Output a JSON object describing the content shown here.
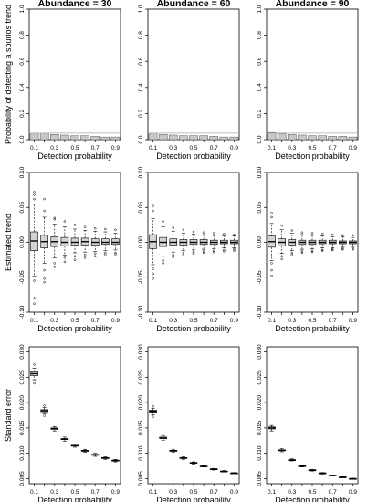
{
  "chart_data": [
    {
      "type": "bar",
      "title": "Abundance = 30",
      "xlabel": "Detection probability",
      "ylabel": "Probability of detecting a spurios trend",
      "categories": [
        "0.1",
        "0.2",
        "0.3",
        "0.4",
        "0.5",
        "0.6",
        "0.7",
        "0.8",
        "0.9"
      ],
      "x_tick_labels": [
        "0.1",
        "0.3",
        "0.5",
        "0.7",
        "0.9"
      ],
      "y_tick_labels": [
        "0.0",
        "0.2",
        "0.4",
        "0.6",
        "0.8",
        "1.0"
      ],
      "values": [
        0.05,
        0.05,
        0.04,
        0.035,
        0.03,
        0.03,
        0.025,
        0.02,
        0.02
      ],
      "reference_line": 0.05,
      "ylim": [
        0,
        1
      ],
      "colors": {
        "bar_fill": "#c8c8c8",
        "bar_edge": "#555555"
      }
    },
    {
      "type": "bar",
      "title": "Abundance = 60",
      "xlabel": "Detection probability",
      "ylabel": "",
      "categories": [
        "0.1",
        "0.2",
        "0.3",
        "0.4",
        "0.5",
        "0.6",
        "0.7",
        "0.8",
        "0.9"
      ],
      "x_tick_labels": [
        "0.1",
        "0.3",
        "0.5",
        "0.7",
        "0.9"
      ],
      "y_tick_labels": [
        "0.0",
        "0.2",
        "0.4",
        "0.6",
        "0.8",
        "1.0"
      ],
      "values": [
        0.05,
        0.04,
        0.035,
        0.03,
        0.03,
        0.03,
        0.025,
        0.02,
        0.02
      ],
      "reference_line": 0.05,
      "ylim": [
        0,
        1
      ],
      "colors": {
        "bar_fill": "#c8c8c8",
        "bar_edge": "#555555"
      }
    },
    {
      "type": "bar",
      "title": "Abundance = 90",
      "xlabel": "Detection probability",
      "ylabel": "",
      "categories": [
        "0.1",
        "0.2",
        "0.3",
        "0.4",
        "0.5",
        "0.6",
        "0.7",
        "0.8",
        "0.9"
      ],
      "x_tick_labels": [
        "0.1",
        "0.3",
        "0.5",
        "0.7",
        "0.9"
      ],
      "y_tick_labels": [
        "0.0",
        "0.2",
        "0.4",
        "0.6",
        "0.8",
        "1.0"
      ],
      "values": [
        0.055,
        0.045,
        0.04,
        0.035,
        0.03,
        0.03,
        0.025,
        0.025,
        0.02
      ],
      "reference_line": 0.05,
      "ylim": [
        0,
        1
      ],
      "colors": {
        "bar_fill": "#c8c8c8",
        "bar_edge": "#555555"
      }
    },
    {
      "type": "boxplot",
      "xlabel": "Detection probability",
      "ylabel": "Estimated trend",
      "categories": [
        "0.1",
        "0.2",
        "0.3",
        "0.4",
        "0.5",
        "0.6",
        "0.7",
        "0.8",
        "0.9"
      ],
      "x_tick_labels": [
        "0.1",
        "0.3",
        "0.5",
        "0.7",
        "0.9"
      ],
      "y_tick_labels": [
        "-0.10",
        "-0.05",
        "0.00",
        "0.05",
        "0.10"
      ],
      "ylim": [
        -0.1,
        0.1
      ],
      "boxes": [
        {
          "q1": -0.012,
          "median": 0.002,
          "q3": 0.015,
          "whisker_low": -0.048,
          "whisker_high": 0.055,
          "outliers": [
            0.072,
            0.068,
            0.062,
            -0.055,
            -0.08,
            -0.088
          ]
        },
        {
          "q1": -0.008,
          "median": 0.001,
          "q3": 0.01,
          "whisker_low": -0.03,
          "whisker_high": 0.036,
          "outliers": [
            0.062,
            0.045,
            -0.04,
            -0.052,
            -0.057
          ]
        },
        {
          "q1": -0.006,
          "median": 0.001,
          "q3": 0.008,
          "whisker_low": -0.022,
          "whisker_high": 0.026,
          "outliers": [
            0.035,
            0.033,
            -0.03,
            -0.035
          ]
        },
        {
          "q1": -0.005,
          "median": 0.0,
          "q3": 0.007,
          "whisker_low": -0.018,
          "whisker_high": 0.022,
          "outliers": [
            0.03,
            -0.022,
            -0.028
          ]
        },
        {
          "q1": -0.004,
          "median": 0.0,
          "q3": 0.006,
          "whisker_low": -0.015,
          "whisker_high": 0.019,
          "outliers": [
            0.025,
            -0.02,
            -0.025
          ]
        },
        {
          "q1": -0.004,
          "median": 0.001,
          "q3": 0.006,
          "whisker_low": -0.014,
          "whisker_high": 0.017,
          "outliers": [
            0.022,
            -0.018,
            -0.022
          ]
        },
        {
          "q1": -0.004,
          "median": 0.0,
          "q3": 0.005,
          "whisker_low": -0.013,
          "whisker_high": 0.016,
          "outliers": [
            0.02,
            -0.016,
            -0.02
          ]
        },
        {
          "q1": -0.003,
          "median": 0.0,
          "q3": 0.005,
          "whisker_low": -0.012,
          "whisker_high": 0.015,
          "outliers": [
            0.019,
            -0.015,
            -0.018
          ]
        },
        {
          "q1": -0.003,
          "median": 0.0,
          "q3": 0.005,
          "whisker_low": -0.011,
          "whisker_high": 0.013,
          "outliers": [
            0.018,
            -0.015,
            -0.017
          ]
        }
      ],
      "colors": {
        "box_fill": "#d3d3d3",
        "box_edge": "#000000"
      }
    },
    {
      "type": "boxplot",
      "xlabel": "Detection probability",
      "ylabel": "",
      "categories": [
        "0.1",
        "0.2",
        "0.3",
        "0.4",
        "0.5",
        "0.6",
        "0.7",
        "0.8",
        "0.9"
      ],
      "x_tick_labels": [
        "0.1",
        "0.3",
        "0.5",
        "0.7",
        "0.9"
      ],
      "y_tick_labels": [
        "-0.10",
        "-0.05",
        "0.00",
        "0.05",
        "0.10"
      ],
      "ylim": [
        -0.1,
        0.1
      ],
      "boxes": [
        {
          "q1": -0.009,
          "median": 0.001,
          "q3": 0.011,
          "whisker_low": -0.032,
          "whisker_high": 0.034,
          "outliers": [
            0.052,
            0.045,
            -0.038,
            -0.045,
            -0.052
          ]
        },
        {
          "q1": -0.006,
          "median": 0.0,
          "q3": 0.007,
          "whisker_low": -0.02,
          "whisker_high": 0.022,
          "outliers": [
            0.03,
            -0.026,
            -0.03
          ]
        },
        {
          "q1": -0.004,
          "median": 0.0,
          "q3": 0.005,
          "whisker_low": -0.014,
          "whisker_high": 0.016,
          "outliers": [
            0.021,
            -0.018,
            -0.021
          ]
        },
        {
          "q1": -0.004,
          "median": 0.0,
          "q3": 0.004,
          "whisker_low": -0.012,
          "whisker_high": 0.013,
          "outliers": [
            0.018,
            -0.015,
            -0.018
          ]
        },
        {
          "q1": -0.003,
          "median": 0.0,
          "q3": 0.004,
          "whisker_low": -0.011,
          "whisker_high": 0.012,
          "outliers": [
            0.015,
            -0.014,
            -0.016
          ]
        },
        {
          "q1": -0.003,
          "median": 0.0,
          "q3": 0.004,
          "whisker_low": -0.01,
          "whisker_high": 0.011,
          "outliers": [
            0.014,
            -0.013,
            -0.015
          ]
        },
        {
          "q1": -0.003,
          "median": 0.0,
          "q3": 0.003,
          "whisker_low": -0.009,
          "whisker_high": 0.01,
          "outliers": [
            0.013,
            -0.012,
            -0.014
          ]
        },
        {
          "q1": -0.002,
          "median": 0.0,
          "q3": 0.003,
          "whisker_low": -0.008,
          "whisker_high": 0.009,
          "outliers": [
            0.012,
            -0.011,
            -0.013
          ]
        },
        {
          "q1": -0.002,
          "median": 0.0,
          "q3": 0.003,
          "whisker_low": -0.008,
          "whisker_high": 0.009,
          "outliers": [
            0.011,
            -0.01,
            -0.012
          ]
        }
      ],
      "colors": {
        "box_fill": "#d3d3d3",
        "box_edge": "#000000"
      }
    },
    {
      "type": "boxplot",
      "xlabel": "Detection probability",
      "ylabel": "",
      "categories": [
        "0.1",
        "0.2",
        "0.3",
        "0.4",
        "0.5",
        "0.6",
        "0.7",
        "0.8",
        "0.9"
      ],
      "x_tick_labels": [
        "0.1",
        "0.3",
        "0.5",
        "0.7",
        "0.9"
      ],
      "y_tick_labels": [
        "-0.10",
        "-0.05",
        "0.00",
        "0.05",
        "0.10"
      ],
      "ylim": [
        -0.1,
        0.1
      ],
      "boxes": [
        {
          "q1": -0.007,
          "median": 0.001,
          "q3": 0.009,
          "whisker_low": -0.026,
          "whisker_high": 0.027,
          "outliers": [
            0.042,
            0.036,
            -0.03,
            -0.04,
            -0.048
          ]
        },
        {
          "q1": -0.005,
          "median": 0.0,
          "q3": 0.005,
          "whisker_low": -0.016,
          "whisker_high": 0.018,
          "outliers": [
            0.024,
            -0.02,
            -0.024
          ]
        },
        {
          "q1": -0.004,
          "median": 0.0,
          "q3": 0.004,
          "whisker_low": -0.012,
          "whisker_high": 0.013,
          "outliers": [
            0.017,
            -0.015,
            -0.018
          ]
        },
        {
          "q1": -0.003,
          "median": 0.0,
          "q3": 0.003,
          "whisker_low": -0.01,
          "whisker_high": 0.011,
          "outliers": [
            0.014,
            -0.013,
            -0.015
          ]
        },
        {
          "q1": -0.003,
          "median": 0.0,
          "q3": 0.003,
          "whisker_low": -0.009,
          "whisker_high": 0.01,
          "outliers": [
            0.013,
            -0.012,
            -0.014
          ]
        },
        {
          "q1": -0.002,
          "median": 0.0,
          "q3": 0.003,
          "whisker_low": -0.008,
          "whisker_high": 0.009,
          "outliers": [
            0.012,
            -0.011,
            -0.012
          ]
        },
        {
          "q1": -0.002,
          "median": 0.0,
          "q3": 0.003,
          "whisker_low": -0.008,
          "whisker_high": 0.008,
          "outliers": [
            0.011,
            -0.01,
            -0.011
          ]
        },
        {
          "q1": -0.002,
          "median": 0.0,
          "q3": 0.002,
          "whisker_low": -0.007,
          "whisker_high": 0.008,
          "outliers": [
            0.01,
            -0.009,
            -0.01
          ]
        },
        {
          "q1": -0.002,
          "median": 0.0,
          "q3": 0.002,
          "whisker_low": -0.007,
          "whisker_high": 0.007,
          "outliers": [
            0.01,
            -0.009,
            -0.01
          ]
        }
      ],
      "colors": {
        "box_fill": "#d3d3d3",
        "box_edge": "#000000"
      }
    },
    {
      "type": "boxplot",
      "xlabel": "Detection probability",
      "ylabel": "Standard error",
      "categories": [
        "0.1",
        "0.2",
        "0.3",
        "0.4",
        "0.5",
        "0.6",
        "0.7",
        "0.8",
        "0.9"
      ],
      "x_tick_labels": [
        "0.1",
        "0.3",
        "0.5",
        "0.7",
        "0.9"
      ],
      "y_tick_labels": [
        "0.005",
        "0.010",
        "0.015",
        "0.020",
        "0.025",
        "0.030"
      ],
      "ylim": [
        0.004,
        0.031
      ],
      "boxes": [
        {
          "q1": 0.0253,
          "median": 0.0257,
          "q3": 0.0261,
          "whisker_low": 0.0245,
          "whisker_high": 0.0268,
          "outliers": [
            0.0275,
            0.0238
          ]
        },
        {
          "q1": 0.0182,
          "median": 0.0184,
          "q3": 0.0186,
          "whisker_low": 0.0178,
          "whisker_high": 0.019,
          "outliers": [
            0.0194,
            0.0174
          ]
        },
        {
          "q1": 0.0147,
          "median": 0.0149,
          "q3": 0.015,
          "whisker_low": 0.0144,
          "whisker_high": 0.0153,
          "outliers": []
        },
        {
          "q1": 0.0127,
          "median": 0.0128,
          "q3": 0.0129,
          "whisker_low": 0.0124,
          "whisker_high": 0.0132,
          "outliers": []
        },
        {
          "q1": 0.0114,
          "median": 0.0115,
          "q3": 0.0116,
          "whisker_low": 0.0112,
          "whisker_high": 0.0118,
          "outliers": []
        },
        {
          "q1": 0.0104,
          "median": 0.0105,
          "q3": 0.0106,
          "whisker_low": 0.0102,
          "whisker_high": 0.0108,
          "outliers": []
        },
        {
          "q1": 0.0096,
          "median": 0.0097,
          "q3": 0.0098,
          "whisker_low": 0.0094,
          "whisker_high": 0.01,
          "outliers": []
        },
        {
          "q1": 0.009,
          "median": 0.0091,
          "q3": 0.0091,
          "whisker_low": 0.0088,
          "whisker_high": 0.0093,
          "outliers": []
        },
        {
          "q1": 0.0085,
          "median": 0.0086,
          "q3": 0.0086,
          "whisker_low": 0.0083,
          "whisker_high": 0.0088,
          "outliers": []
        }
      ],
      "colors": {
        "box_fill": "#d3d3d3",
        "box_edge": "#000000"
      }
    },
    {
      "type": "boxplot",
      "xlabel": "Detection probability",
      "ylabel": "",
      "categories": [
        "0.1",
        "0.2",
        "0.3",
        "0.4",
        "0.5",
        "0.6",
        "0.7",
        "0.8",
        "0.9"
      ],
      "x_tick_labels": [
        "0.1",
        "0.3",
        "0.5",
        "0.7",
        "0.9"
      ],
      "y_tick_labels": [
        "0.005",
        "0.010",
        "0.015",
        "0.020",
        "0.025",
        "0.030"
      ],
      "ylim": [
        0.004,
        0.031
      ],
      "boxes": [
        {
          "q1": 0.0181,
          "median": 0.0183,
          "q3": 0.0185,
          "whisker_low": 0.0176,
          "whisker_high": 0.0189,
          "outliers": [
            0.0193,
            0.0172
          ]
        },
        {
          "q1": 0.0129,
          "median": 0.013,
          "q3": 0.0132,
          "whisker_low": 0.0126,
          "whisker_high": 0.0135,
          "outliers": []
        },
        {
          "q1": 0.0104,
          "median": 0.0105,
          "q3": 0.0106,
          "whisker_low": 0.0102,
          "whisker_high": 0.0108,
          "outliers": []
        },
        {
          "q1": 0.009,
          "median": 0.0091,
          "q3": 0.0091,
          "whisker_low": 0.0088,
          "whisker_high": 0.0093,
          "outliers": []
        },
        {
          "q1": 0.0081,
          "median": 0.0081,
          "q3": 0.0082,
          "whisker_low": 0.0079,
          "whisker_high": 0.0083,
          "outliers": []
        },
        {
          "q1": 0.0074,
          "median": 0.0074,
          "q3": 0.0075,
          "whisker_low": 0.0073,
          "whisker_high": 0.0076,
          "outliers": []
        },
        {
          "q1": 0.0068,
          "median": 0.0069,
          "q3": 0.0069,
          "whisker_low": 0.0067,
          "whisker_high": 0.007,
          "outliers": []
        },
        {
          "q1": 0.0064,
          "median": 0.0064,
          "q3": 0.0065,
          "whisker_low": 0.0063,
          "whisker_high": 0.0066,
          "outliers": []
        },
        {
          "q1": 0.0061,
          "median": 0.0061,
          "q3": 0.0061,
          "whisker_low": 0.006,
          "whisker_high": 0.0062,
          "outliers": []
        }
      ],
      "colors": {
        "box_fill": "#d3d3d3",
        "box_edge": "#000000"
      }
    },
    {
      "type": "boxplot",
      "xlabel": "Detection probability",
      "ylabel": "",
      "categories": [
        "0.1",
        "0.2",
        "0.3",
        "0.4",
        "0.5",
        "0.6",
        "0.7",
        "0.8",
        "0.9"
      ],
      "x_tick_labels": [
        "0.1",
        "0.3",
        "0.5",
        "0.7",
        "0.9"
      ],
      "y_tick_labels": [
        "0.005",
        "0.010",
        "0.015",
        "0.020",
        "0.025",
        "0.030"
      ],
      "ylim": [
        0.004,
        0.031
      ],
      "boxes": [
        {
          "q1": 0.0148,
          "median": 0.015,
          "q3": 0.0152,
          "whisker_low": 0.0144,
          "whisker_high": 0.0155,
          "outliers": []
        },
        {
          "q1": 0.0105,
          "median": 0.0106,
          "q3": 0.0107,
          "whisker_low": 0.0103,
          "whisker_high": 0.0109,
          "outliers": []
        },
        {
          "q1": 0.0086,
          "median": 0.0087,
          "q3": 0.0087,
          "whisker_low": 0.0085,
          "whisker_high": 0.0089,
          "outliers": []
        },
        {
          "q1": 0.0074,
          "median": 0.0075,
          "q3": 0.0075,
          "whisker_low": 0.0073,
          "whisker_high": 0.0076,
          "outliers": []
        },
        {
          "q1": 0.0066,
          "median": 0.0067,
          "q3": 0.0067,
          "whisker_low": 0.0065,
          "whisker_high": 0.0068,
          "outliers": []
        },
        {
          "q1": 0.006,
          "median": 0.0061,
          "q3": 0.0061,
          "whisker_low": 0.0059,
          "whisker_high": 0.0062,
          "outliers": []
        },
        {
          "q1": 0.0056,
          "median": 0.0056,
          "q3": 0.0057,
          "whisker_low": 0.0055,
          "whisker_high": 0.0057,
          "outliers": []
        },
        {
          "q1": 0.0052,
          "median": 0.0053,
          "q3": 0.0053,
          "whisker_low": 0.0052,
          "whisker_high": 0.0054,
          "outliers": []
        },
        {
          "q1": 0.0049,
          "median": 0.005,
          "q3": 0.005,
          "whisker_low": 0.0049,
          "whisker_high": 0.0051,
          "outliers": []
        }
      ],
      "colors": {
        "box_fill": "#d3d3d3",
        "box_edge": "#000000"
      }
    }
  ]
}
